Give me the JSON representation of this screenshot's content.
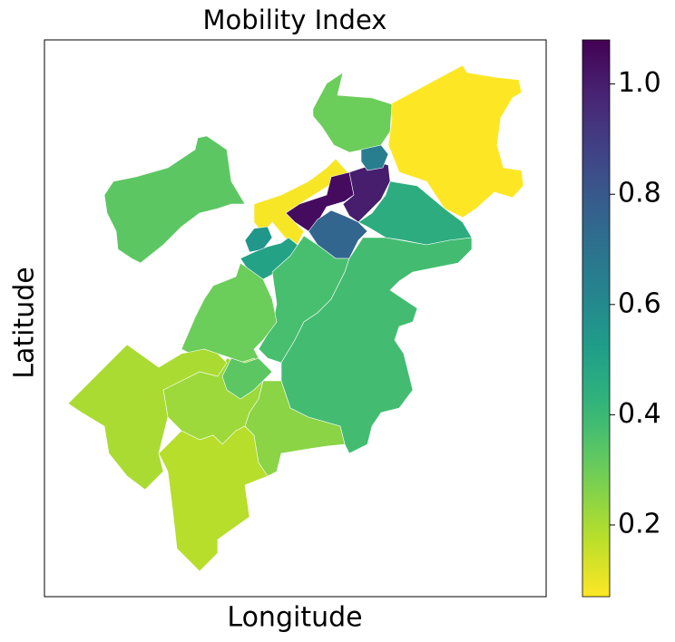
{
  "chart_data": {
    "type": "choropleth",
    "title": "Mobility Index",
    "xlabel": "Longitude",
    "ylabel": "Latitude",
    "colormap": "viridis_r",
    "values": [
      0.07,
      0.3,
      0.33,
      0.08,
      1.05,
      1.0,
      0.65,
      0.45,
      0.75,
      0.55,
      0.5,
      0.37,
      0.38,
      0.3,
      0.22,
      0.2,
      0.18,
      0.25,
      0.33
    ],
    "ylim": [
      0.07,
      1.08
    ],
    "yticks": [
      0.2,
      0.4,
      0.6,
      0.8,
      {
        "value": 1,
        "label": "1.0"
      }
    ]
  }
}
